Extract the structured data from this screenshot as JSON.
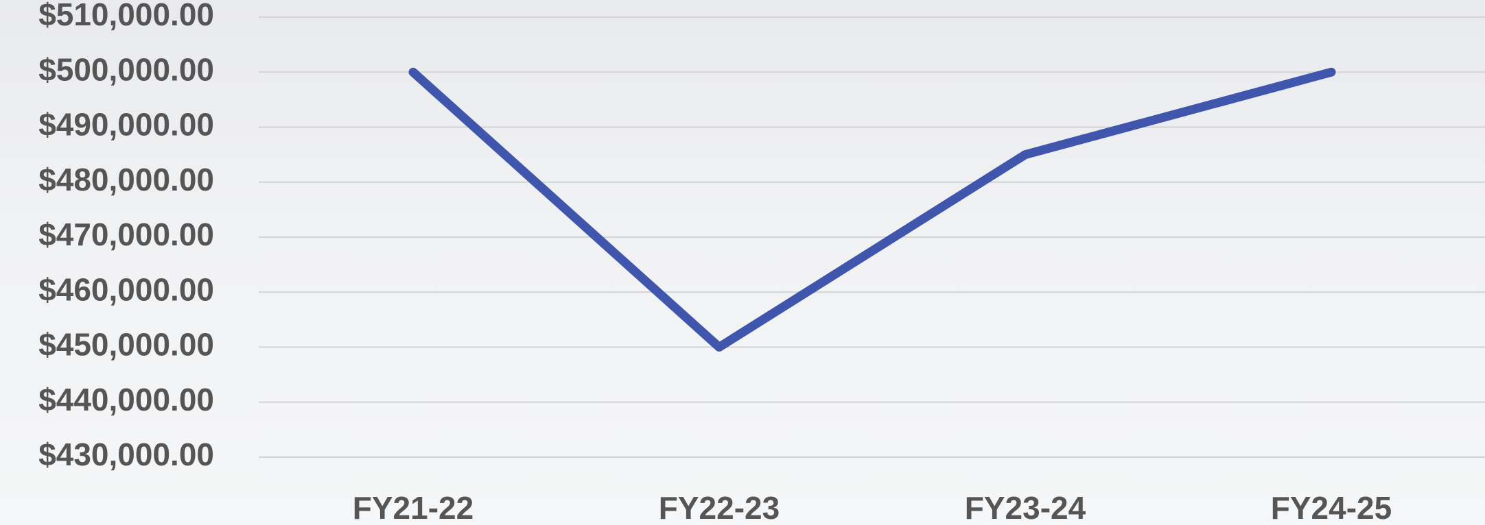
{
  "chart_data": {
    "type": "line",
    "categories": [
      "FY21-22",
      "FY22-23",
      "FY23-24",
      "FY24-25"
    ],
    "values": [
      500000,
      450000,
      485000,
      500000
    ],
    "color": "#3f56ac",
    "ylim": [
      430000,
      510000
    ],
    "yticks": [
      {
        "value": 430000,
        "label": "$430,000.00"
      },
      {
        "value": 440000,
        "label": "$440,000.00"
      },
      {
        "value": 450000,
        "label": "$450,000.00"
      },
      {
        "value": 460000,
        "label": "$460,000.00"
      },
      {
        "value": 470000,
        "label": "$470,000.00"
      },
      {
        "value": 480000,
        "label": "$480,000.00"
      },
      {
        "value": 490000,
        "label": "$490,000.00"
      },
      {
        "value": 500000,
        "label": "$500,000.00"
      },
      {
        "value": 510000,
        "label": "$510,000.00"
      }
    ],
    "grid": true
  }
}
